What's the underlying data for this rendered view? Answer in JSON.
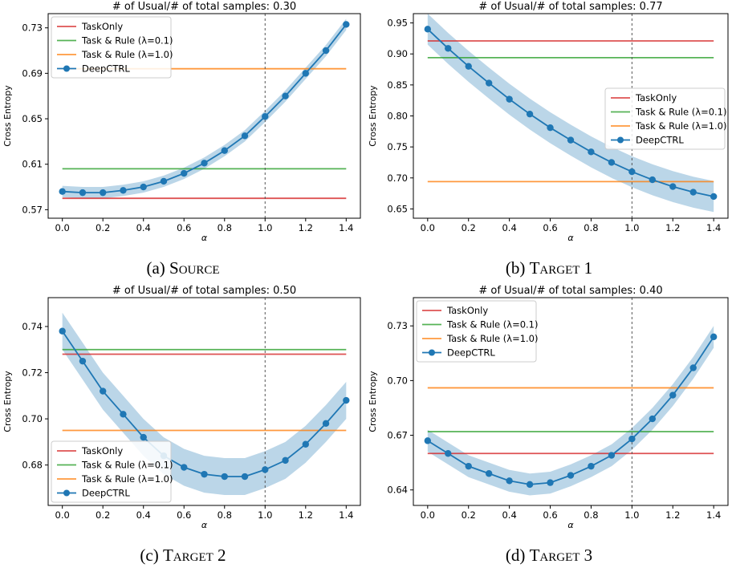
{
  "figure": {
    "captions": [
      {
        "label": "(a)",
        "text": "Source"
      },
      {
        "label": "(b)",
        "text": "Target 1"
      },
      {
        "label": "(c)",
        "text": "Target 2"
      },
      {
        "label": "(d)",
        "text": "Target 3"
      }
    ]
  },
  "chart_data": [
    {
      "type": "line",
      "title": "# of Usual/# of total samples: 0.30",
      "xlabel": "α",
      "ylabel": "Cross Entropy",
      "xlim": [
        -0.07,
        1.47
      ],
      "ylim": [
        0.5625,
        0.7425
      ],
      "xticks": [
        0.0,
        0.2,
        0.4,
        0.6,
        0.8,
        1.0,
        1.2,
        1.4
      ],
      "yticks": [
        0.57,
        0.61,
        0.65,
        0.69,
        0.73
      ],
      "vline_x": 1.0,
      "legend": "top-left",
      "series": [
        {
          "name": "TaskOnly",
          "color": "#d62728",
          "constant": 0.58
        },
        {
          "name": "Task & Rule (λ=0.1)",
          "color": "#2ca02c",
          "constant": 0.606
        },
        {
          "name": "Task & Rule (λ=1.0)",
          "color": "#ff7f0e",
          "constant": 0.694
        },
        {
          "name": "DeepCTRL",
          "color": "#1f77b4",
          "x": [
            0.0,
            0.1,
            0.2,
            0.3,
            0.4,
            0.5,
            0.6,
            0.7,
            0.8,
            0.9,
            1.0,
            1.1,
            1.2,
            1.3,
            1.4
          ],
          "y": [
            0.586,
            0.585,
            0.585,
            0.587,
            0.59,
            0.595,
            0.602,
            0.611,
            0.622,
            0.635,
            0.652,
            0.67,
            0.69,
            0.71,
            0.733
          ],
          "band": 0.005
        }
      ]
    },
    {
      "type": "line",
      "title": "# of Usual/# of total samples: 0.77",
      "xlabel": "α",
      "ylabel": "Cross Entropy",
      "xlim": [
        -0.07,
        1.47
      ],
      "ylim": [
        0.635,
        0.965
      ],
      "xticks": [
        0.0,
        0.2,
        0.4,
        0.6,
        0.8,
        1.0,
        1.2,
        1.4
      ],
      "yticks": [
        0.65,
        0.7,
        0.75,
        0.8,
        0.85,
        0.9,
        0.95
      ],
      "vline_x": 1.0,
      "legend": "center-right",
      "series": [
        {
          "name": "TaskOnly",
          "color": "#d62728",
          "constant": 0.921
        },
        {
          "name": "Task & Rule (λ=0.1)",
          "color": "#2ca02c",
          "constant": 0.894
        },
        {
          "name": "Task & Rule (λ=1.0)",
          "color": "#ff7f0e",
          "constant": 0.694
        },
        {
          "name": "DeepCTRL",
          "color": "#1f77b4",
          "x": [
            0.0,
            0.1,
            0.2,
            0.3,
            0.4,
            0.5,
            0.6,
            0.7,
            0.8,
            0.9,
            1.0,
            1.1,
            1.2,
            1.3,
            1.4
          ],
          "y": [
            0.94,
            0.909,
            0.88,
            0.853,
            0.827,
            0.803,
            0.781,
            0.761,
            0.742,
            0.725,
            0.71,
            0.697,
            0.686,
            0.677,
            0.67
          ],
          "band": 0.025
        }
      ]
    },
    {
      "type": "line",
      "title": "# of Usual/# of total samples: 0.50",
      "xlabel": "α",
      "ylabel": "Cross Entropy",
      "xlim": [
        -0.07,
        1.47
      ],
      "ylim": [
        0.6625,
        0.7525
      ],
      "xticks": [
        0.0,
        0.2,
        0.4,
        0.6,
        0.8,
        1.0,
        1.2,
        1.4
      ],
      "yticks": [
        0.68,
        0.7,
        0.72,
        0.74
      ],
      "vline_x": 1.0,
      "legend": "bottom-left",
      "series": [
        {
          "name": "TaskOnly",
          "color": "#d62728",
          "constant": 0.728
        },
        {
          "name": "Task & Rule (λ=0.1)",
          "color": "#2ca02c",
          "constant": 0.73
        },
        {
          "name": "Task & Rule (λ=1.0)",
          "color": "#ff7f0e",
          "constant": 0.695
        },
        {
          "name": "DeepCTRL",
          "color": "#1f77b4",
          "x": [
            0.0,
            0.1,
            0.2,
            0.3,
            0.4,
            0.5,
            0.6,
            0.7,
            0.8,
            0.9,
            1.0,
            1.1,
            1.2,
            1.3,
            1.4
          ],
          "y": [
            0.738,
            0.725,
            0.712,
            0.702,
            0.692,
            0.684,
            0.679,
            0.676,
            0.675,
            0.675,
            0.678,
            0.682,
            0.689,
            0.698,
            0.708
          ],
          "band": 0.008
        }
      ]
    },
    {
      "type": "line",
      "title": "# of Usual/# of total samples: 0.40",
      "xlabel": "α",
      "ylabel": "Cross Entropy",
      "xlim": [
        -0.07,
        1.47
      ],
      "ylim": [
        0.6315,
        0.7455
      ],
      "xticks": [
        0.0,
        0.2,
        0.4,
        0.6,
        0.8,
        1.0,
        1.2,
        1.4
      ],
      "yticks": [
        0.64,
        0.67,
        0.7,
        0.73
      ],
      "vline_x": 1.0,
      "legend": "top-left",
      "series": [
        {
          "name": "TaskOnly",
          "color": "#d62728",
          "constant": 0.66
        },
        {
          "name": "Task & Rule (λ=0.1)",
          "color": "#2ca02c",
          "constant": 0.672
        },
        {
          "name": "Task & Rule (λ=1.0)",
          "color": "#ff7f0e",
          "constant": 0.696
        },
        {
          "name": "DeepCTRL",
          "color": "#1f77b4",
          "x": [
            0.0,
            0.1,
            0.2,
            0.3,
            0.4,
            0.5,
            0.6,
            0.7,
            0.8,
            0.9,
            1.0,
            1.1,
            1.2,
            1.3,
            1.4
          ],
          "y": [
            0.667,
            0.66,
            0.653,
            0.649,
            0.645,
            0.643,
            0.644,
            0.648,
            0.653,
            0.659,
            0.668,
            0.679,
            0.692,
            0.707,
            0.724
          ],
          "band": 0.006
        }
      ]
    }
  ]
}
